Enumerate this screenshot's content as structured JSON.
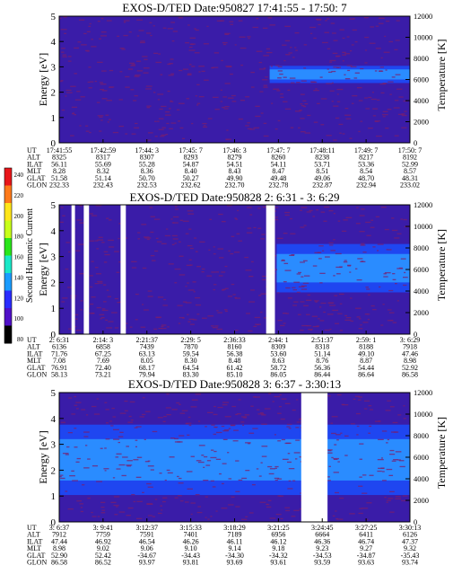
{
  "colors": {
    "frame": "#000000",
    "spectrogram_low": "#3a1ca8",
    "spectrogram_mid": "#1f46f0",
    "spectrogram_high": "#2a8cff",
    "speckle": "#7a1e6e",
    "gap": "#ffffff"
  },
  "colorbar": {
    "label": "Second Harmonic Current",
    "ticks": [
      "240",
      "220",
      "200",
      "180",
      "160",
      "140",
      "120",
      "100",
      "80"
    ],
    "colors": [
      "#e8161a",
      "#ff7a1a",
      "#ffe61a",
      "#c8ff1a",
      "#2ae61a",
      "#1ae8c8",
      "#1a9cff",
      "#2a2cff",
      "#5010c8",
      "#000000"
    ]
  },
  "chart_data": [
    {
      "type": "heatmap",
      "title": "EXOS-D/TED   Date:950827  17:41:55 - 17:50: 7",
      "ylabel": "Energy [eV]",
      "y2label": "Temperature [K]",
      "ylim": [
        0,
        5
      ],
      "y2lim": [
        0,
        12000
      ],
      "y_ticks": [
        "0",
        "1",
        "2",
        "3",
        "4",
        "5"
      ],
      "y2_ticks": [
        "0",
        "2000",
        "4000",
        "6000",
        "8000",
        "10000",
        "12000"
      ],
      "row_labels": [
        "UT",
        "ALT",
        "ILAT",
        "MLT",
        "GLAT",
        "GLON"
      ],
      "columns": [
        [
          "17:41:55",
          "8325",
          "56.11",
          "8.28",
          "51.58",
          "232.33"
        ],
        [
          "17:42:59",
          "8317",
          "55.69",
          "8.32",
          "51.14",
          "232.43"
        ],
        [
          "17:44: 3",
          "8307",
          "55.28",
          "8.36",
          "50.70",
          "232.53"
        ],
        [
          "17:45: 7",
          "8293",
          "54.87",
          "8.40",
          "50.27",
          "232.62"
        ],
        [
          "17:46: 3",
          "8279",
          "54.51",
          "8.43",
          "49.90",
          "232.70"
        ],
        [
          "17:47: 7",
          "8260",
          "54.11",
          "8.47",
          "49.48",
          "232.78"
        ],
        [
          "17:48:11",
          "8238",
          "53.71",
          "8.51",
          "49.06",
          "232.87"
        ],
        [
          "17:49: 7",
          "8217",
          "53.36",
          "8.54",
          "48.70",
          "232.94"
        ],
        [
          "17:50: 7",
          "8192",
          "52.99",
          "8.57",
          "48.31",
          "233.02"
        ]
      ],
      "gaps": [],
      "band": {
        "from_fraction": 0.6,
        "to_fraction": 1.0,
        "energy_low": 2.5,
        "energy_high": 2.9
      }
    },
    {
      "type": "heatmap",
      "title": "EXOS-D/TED   Date:950828  2: 6:31 - 3: 6:29",
      "ylabel": "Energy [eV]",
      "y2label": "Temperature [K]",
      "ylim": [
        0,
        5
      ],
      "y2lim": [
        0,
        12000
      ],
      "y_ticks": [
        "0",
        "1",
        "2",
        "3",
        "4",
        "5"
      ],
      "y2_ticks": [
        "0",
        "2000",
        "4000",
        "6000",
        "8000",
        "10000",
        "12000"
      ],
      "row_labels": [
        "UT",
        "ALT",
        "ILAT",
        "MLT",
        "GLAT",
        "GLON"
      ],
      "columns": [
        [
          "2: 6:31",
          "6136",
          "71.76",
          "7.08",
          "76.91",
          "58.13"
        ],
        [
          "2:14: 3",
          "6858",
          "67.25",
          "7.69",
          "72.40",
          "73.21"
        ],
        [
          "2:21:37",
          "7439",
          "63.13",
          "8.05",
          "68.17",
          "79.94"
        ],
        [
          "2:29: 5",
          "7870",
          "59.54",
          "8.30",
          "64.54",
          "83.30"
        ],
        [
          "2:36:33",
          "8160",
          "56.38",
          "8.48",
          "61.42",
          "85.10"
        ],
        [
          "2:44: 1",
          "8309",
          "53.60",
          "8.63",
          "58.72",
          "86.05"
        ],
        [
          "2:51:37",
          "8318",
          "51.14",
          "8.76",
          "56.36",
          "86.44"
        ],
        [
          "2:59: 1",
          "8188",
          "49.10",
          "8.87",
          "54.44",
          "86.64"
        ],
        [
          "3: 6:29",
          "7918",
          "47.46",
          "8.98",
          "52.92",
          "86.58"
        ]
      ],
      "gaps": [
        [
          0.035,
          0.045
        ],
        [
          0.07,
          0.085
        ],
        [
          0.175,
          0.19
        ],
        [
          0.59,
          0.615
        ]
      ],
      "band": {
        "from_fraction": 0.62,
        "to_fraction": 1.0,
        "energy_low": 2.0,
        "energy_high": 3.1
      }
    },
    {
      "type": "heatmap",
      "title": "EXOS-D/TED   Date:950828  3: 6:37 - 3:30:13",
      "ylabel": "Energy [eV]",
      "y2label": "Temperature [K]",
      "ylim": [
        0,
        5
      ],
      "y2lim": [
        0,
        12000
      ],
      "y_ticks": [
        "0",
        "1",
        "2",
        "3",
        "4",
        "5"
      ],
      "y2_ticks": [
        "0",
        "2000",
        "4000",
        "6000",
        "8000",
        "10000",
        "12000"
      ],
      "row_labels": [
        "UT",
        "ALT",
        "ILAT",
        "MLT",
        "GLAT",
        "GLON"
      ],
      "columns": [
        [
          "3: 6:37",
          "7912",
          "47.44",
          "8.98",
          "52.90",
          "86.58"
        ],
        [
          "3: 9:41",
          "7759",
          "46.92",
          "9.02",
          "52.42",
          "86.52"
        ],
        [
          "3:12:37",
          "7591",
          "46.54",
          "9.06",
          "-34.67",
          "93.97"
        ],
        [
          "3:15:33",
          "7401",
          "46.26",
          "9.10",
          "-34.43",
          "93.81"
        ],
        [
          "3:18:29",
          "7189",
          "46.11",
          "9.14",
          "-34.30",
          "93.69"
        ],
        [
          "3:21:25",
          "6956",
          "46.12",
          "9.18",
          "-34.32",
          "93.61"
        ],
        [
          "3:24:45",
          "6664",
          "46.36",
          "9.23",
          "-34.53",
          "93.59"
        ],
        [
          "3:27:25",
          "6411",
          "46.74",
          "9.27",
          "-34.87",
          "93.63"
        ],
        [
          "3:30:13",
          "6126",
          "47.37",
          "9.32",
          "-35.43",
          "93.74"
        ]
      ],
      "gaps": [
        [
          0.69,
          0.765
        ]
      ],
      "band": {
        "from_fraction": 0.0,
        "to_fraction": 1.0,
        "energy_low": 1.6,
        "energy_high": 3.2
      }
    }
  ]
}
